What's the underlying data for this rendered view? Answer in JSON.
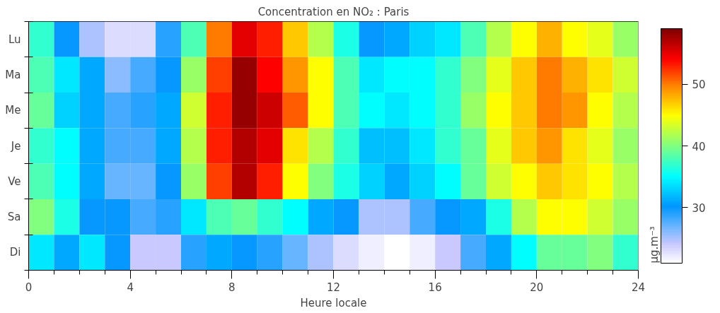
{
  "chart_data": {
    "type": "heatmap",
    "title": "Concentration en NO₂ : Paris",
    "xlabel": "Heure locale",
    "clabel": "µg.m⁻³",
    "x": [
      0.5,
      1.5,
      2.5,
      3.5,
      4.5,
      5.5,
      6.5,
      7.5,
      8.5,
      9.5,
      10.5,
      11.5,
      12.5,
      13.5,
      14.5,
      15.5,
      16.5,
      17.5,
      18.5,
      19.5,
      20.5,
      21.5,
      22.5,
      23.5
    ],
    "xlim": [
      0,
      24
    ],
    "xticks": [
      0,
      4,
      8,
      12,
      16,
      20,
      24
    ],
    "y_categories": [
      "Lu",
      "Ma",
      "Me",
      "Je",
      "Ve",
      "Sa",
      "Di"
    ],
    "cells": [
      [
        37,
        30,
        25,
        23,
        23,
        29,
        38,
        50,
        55,
        53,
        47,
        42,
        36,
        30,
        31,
        33,
        34,
        38,
        42,
        45,
        48,
        45,
        44,
        41
      ],
      [
        38,
        34,
        31,
        26,
        28,
        30,
        41,
        52,
        58,
        54,
        49,
        45,
        38,
        34,
        35,
        35,
        37,
        40,
        44,
        47,
        50,
        48,
        46,
        43
      ],
      [
        39,
        33,
        31,
        28,
        29,
        31,
        43,
        53,
        58,
        56,
        51,
        45,
        38,
        35,
        34,
        35,
        37,
        41,
        45,
        47,
        50,
        49,
        45,
        42
      ],
      [
        37,
        35,
        31,
        28,
        28,
        31,
        42,
        53,
        57,
        55,
        46,
        42,
        37,
        32,
        32,
        34,
        37,
        39,
        44,
        47,
        49,
        46,
        44,
        41
      ],
      [
        38,
        35,
        31,
        27,
        27,
        30,
        41,
        52,
        57,
        53,
        45,
        40,
        36,
        33,
        31,
        33,
        35,
        39,
        43,
        45,
        47,
        46,
        45,
        42
      ],
      [
        40,
        36,
        30,
        30,
        28,
        29,
        34,
        38,
        39,
        37,
        35,
        31,
        30,
        25,
        25,
        28,
        30,
        31,
        36,
        42,
        45,
        45,
        43,
        41
      ],
      [
        34,
        31,
        34,
        30,
        24,
        24,
        29,
        31,
        30,
        29,
        27,
        25,
        23,
        22,
        21,
        22,
        24,
        28,
        31,
        35,
        39,
        39,
        40,
        37
      ]
    ],
    "clim": [
      21,
      59
    ],
    "cticks": [
      30,
      40,
      50
    ],
    "grid": false
  }
}
